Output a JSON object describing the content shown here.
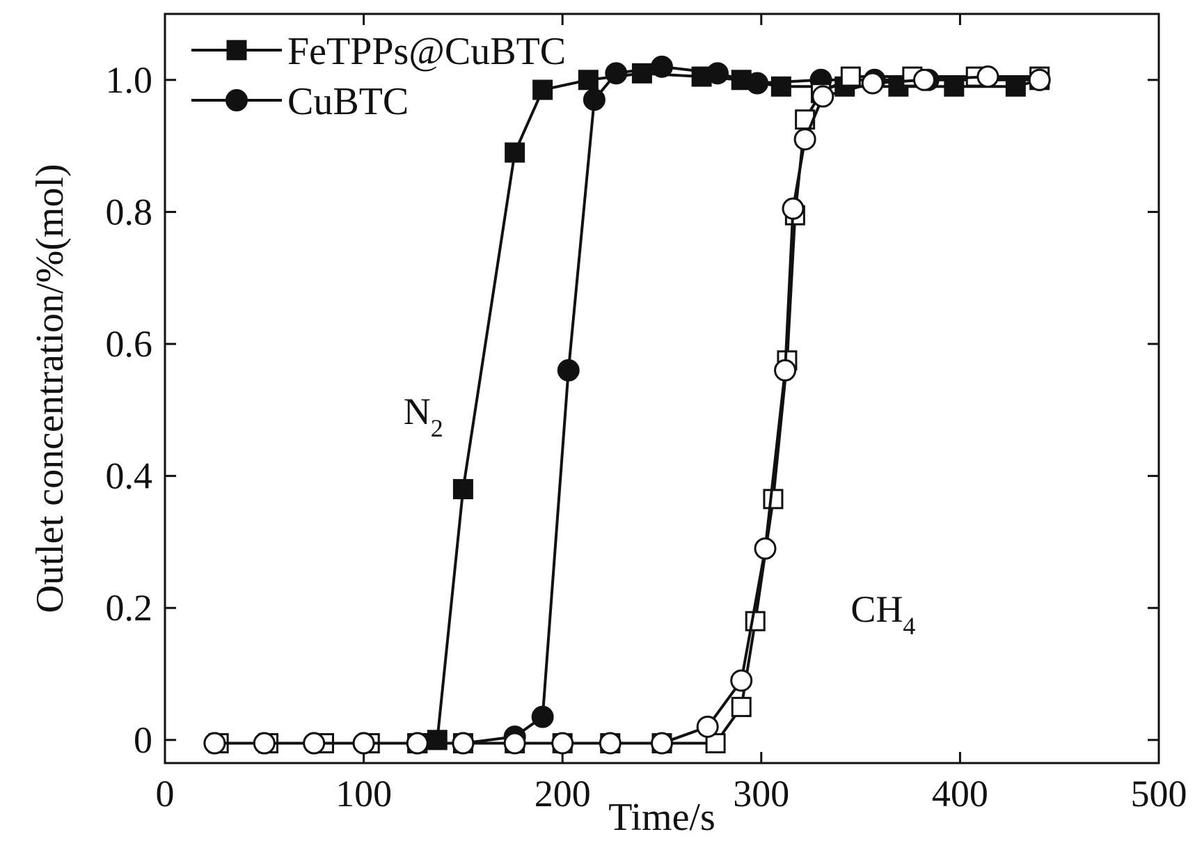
{
  "chart_data": {
    "type": "line",
    "xlabel": "Time/s",
    "ylabel": "Outlet concentration/%(mol)",
    "xlim": [
      0,
      500
    ],
    "ylim": [
      -0.035,
      1.1
    ],
    "x_ticks": [
      0,
      100,
      200,
      300,
      400,
      500
    ],
    "x_tick_labels": [
      "0",
      "100",
      "200",
      "300",
      "400",
      "500"
    ],
    "y_ticks": [
      0,
      0.2,
      0.4,
      0.6,
      0.8,
      1.0
    ],
    "y_tick_labels": [
      "0",
      "0.2",
      "0.4",
      "0.6",
      "0.8",
      "1.0"
    ],
    "grid": false,
    "legend_position": "top-left",
    "legend": [
      {
        "label": "FeTPPs@CuBTC",
        "marker": "square",
        "fill": "filled"
      },
      {
        "label": "CuBTC",
        "marker": "circle",
        "fill": "filled"
      }
    ],
    "annotations": [
      {
        "text": "N",
        "subscript": "2",
        "x": 120,
        "y": 0.5
      },
      {
        "text": "CH",
        "subscript": "4",
        "x": 345,
        "y": 0.2
      }
    ],
    "series": [
      {
        "name": "FeTPPs@CuBTC",
        "gas": "N2",
        "marker": "square",
        "fill": "filled",
        "x": [
          27,
          52,
          80,
          103,
          127,
          137,
          150,
          176,
          190,
          213,
          240,
          270,
          290,
          310,
          330,
          342,
          369,
          397,
          428,
          440
        ],
        "y": [
          -0.005,
          -0.005,
          -0.005,
          -0.005,
          -0.005,
          0.0,
          0.38,
          0.89,
          0.985,
          1.0,
          1.01,
          1.005,
          1.0,
          0.99,
          0.99,
          0.99,
          0.99,
          0.99,
          0.99,
          1.0
        ]
      },
      {
        "name": "CuBTC",
        "gas": "N2",
        "marker": "circle",
        "fill": "filled",
        "x": [
          25,
          50,
          75,
          100,
          127,
          150,
          176,
          190,
          203,
          216,
          227,
          250,
          278,
          298,
          330,
          357,
          384,
          440
        ],
        "y": [
          -0.005,
          -0.005,
          -0.005,
          -0.005,
          -0.005,
          -0.005,
          0.005,
          0.035,
          0.56,
          0.97,
          1.01,
          1.02,
          1.01,
          0.995,
          1.0,
          1.0,
          1.0,
          1.0
        ]
      },
      {
        "name": "FeTPPs@CuBTC",
        "gas": "CH4",
        "marker": "square",
        "fill": "open",
        "x": [
          27,
          52,
          80,
          103,
          127,
          150,
          176,
          200,
          224,
          250,
          277,
          290,
          297,
          306,
          313,
          317,
          322,
          330,
          345,
          376,
          408,
          440
        ],
        "y": [
          -0.005,
          -0.005,
          -0.005,
          -0.005,
          -0.005,
          -0.005,
          -0.005,
          -0.005,
          -0.005,
          -0.005,
          -0.005,
          0.05,
          0.18,
          0.365,
          0.575,
          0.795,
          0.94,
          0.98,
          1.005,
          1.005,
          1.005,
          1.005
        ]
      },
      {
        "name": "CuBTC",
        "gas": "CH4",
        "marker": "circle",
        "fill": "open",
        "x": [
          25,
          50,
          75,
          100,
          127,
          150,
          176,
          200,
          224,
          250,
          273,
          290,
          302,
          312,
          316,
          322,
          331,
          356,
          382,
          414,
          440
        ],
        "y": [
          -0.005,
          -0.005,
          -0.005,
          -0.005,
          -0.005,
          -0.005,
          -0.005,
          -0.005,
          -0.005,
          -0.005,
          0.02,
          0.09,
          0.29,
          0.56,
          0.805,
          0.91,
          0.975,
          0.995,
          1.0,
          1.005,
          1.0
        ]
      }
    ]
  }
}
